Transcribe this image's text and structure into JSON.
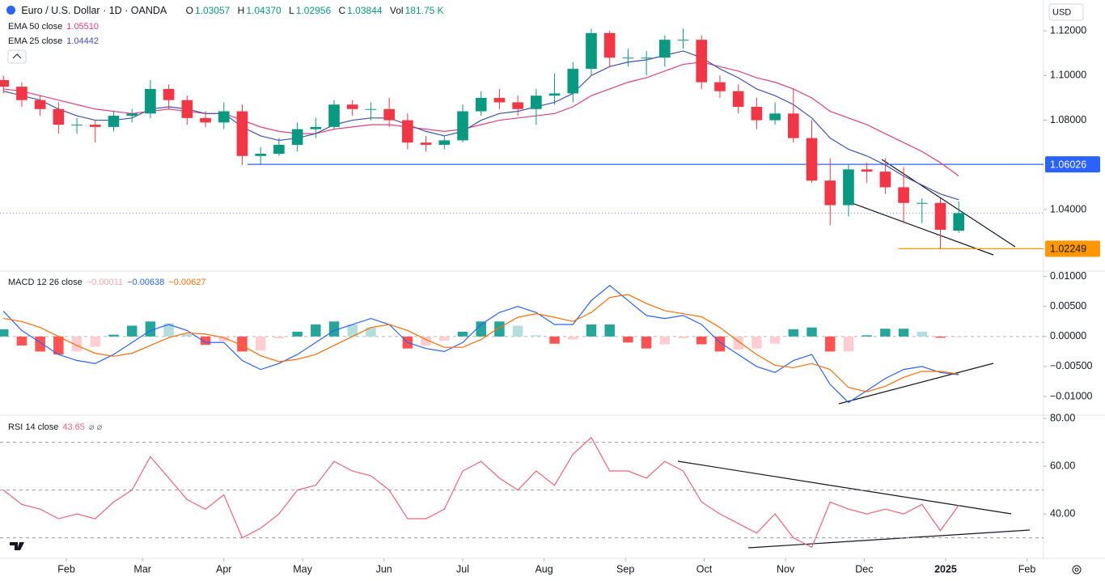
{
  "header": {
    "symbol": "Euro / U.S. Dollar · 1D · OANDA",
    "ohlc": [
      {
        "label": "O",
        "value": "1.03057"
      },
      {
        "label": "H",
        "value": "1.04370"
      },
      {
        "label": "L",
        "value": "1.02956"
      },
      {
        "label": "C",
        "value": "1.03844"
      },
      {
        "label": "Vol",
        "value": "181.75 K"
      }
    ],
    "currency": "USD"
  },
  "chart_data": [
    {
      "type": "candlestick",
      "x": [
        -24,
        -17,
        -10,
        -3,
        4,
        11,
        18,
        25,
        32,
        39,
        46,
        53,
        60,
        67,
        74,
        81,
        88,
        95,
        102,
        109,
        116,
        123,
        130,
        137,
        144,
        151,
        158,
        165,
        172,
        179,
        186,
        193,
        200,
        207,
        214,
        221,
        228,
        235,
        242,
        249,
        256,
        263,
        270,
        277,
        284,
        291,
        298,
        305,
        312,
        319,
        326,
        333,
        340
      ],
      "open": [
        1.098,
        1.095,
        1.089,
        1.085,
        1.078,
        1.078,
        1.077,
        1.082,
        1.083,
        1.094,
        1.089,
        1.081,
        1.079,
        1.084,
        1.064,
        1.065,
        1.069,
        1.076,
        1.077,
        1.087,
        1.085,
        1.085,
        1.08,
        1.07,
        1.069,
        1.071,
        1.084,
        1.09,
        1.088,
        1.085,
        1.091,
        1.092,
        1.103,
        1.119,
        1.108,
        1.108,
        1.108,
        1.116,
        1.116,
        1.097,
        1.093,
        1.086,
        1.08,
        1.083,
        1.072,
        1.053,
        1.042,
        1.058,
        1.057,
        1.05,
        1.043,
        1.043,
        1.03057
      ],
      "high": [
        1.1,
        1.097,
        1.091,
        1.088,
        1.081,
        1.08,
        1.084,
        1.085,
        1.098,
        1.096,
        1.091,
        1.084,
        1.088,
        1.087,
        1.068,
        1.072,
        1.079,
        1.081,
        1.089,
        1.089,
        1.088,
        1.09,
        1.083,
        1.073,
        1.073,
        1.087,
        1.093,
        1.094,
        1.091,
        1.094,
        1.101,
        1.106,
        1.121,
        1.12,
        1.112,
        1.111,
        1.118,
        1.121,
        1.118,
        1.1,
        1.096,
        1.09,
        1.088,
        1.094,
        1.08,
        1.063,
        1.06,
        1.061,
        1.063,
        1.059,
        1.045,
        1.045,
        1.0437
      ],
      "low": [
        1.092,
        1.086,
        1.082,
        1.074,
        1.074,
        1.07,
        1.075,
        1.079,
        1.081,
        1.085,
        1.078,
        1.077,
        1.076,
        1.06,
        1.06,
        1.064,
        1.066,
        1.072,
        1.076,
        1.082,
        1.08,
        1.077,
        1.067,
        1.066,
        1.067,
        1.07,
        1.082,
        1.085,
        1.082,
        1.078,
        1.087,
        1.088,
        1.1,
        1.104,
        1.104,
        1.1,
        1.104,
        1.112,
        1.094,
        1.09,
        1.083,
        1.076,
        1.078,
        1.07,
        1.052,
        1.033,
        1.037,
        1.052,
        1.047,
        1.034,
        1.034,
        1.02249,
        1.02956
      ],
      "close": [
        1.095,
        1.089,
        1.085,
        1.078,
        1.078,
        1.077,
        1.082,
        1.083,
        1.094,
        1.089,
        1.081,
        1.079,
        1.084,
        1.064,
        1.065,
        1.069,
        1.076,
        1.077,
        1.087,
        1.085,
        1.085,
        1.08,
        1.07,
        1.069,
        1.071,
        1.084,
        1.09,
        1.088,
        1.085,
        1.091,
        1.092,
        1.103,
        1.119,
        1.108,
        1.108,
        1.108,
        1.116,
        1.116,
        1.097,
        1.093,
        1.086,
        1.08,
        1.083,
        1.072,
        1.053,
        1.042,
        1.058,
        1.057,
        1.05,
        1.043,
        1.043,
        1.031,
        1.03844
      ],
      "up_color": "#089981",
      "down_color": "#f23645",
      "xlim": [
        -25.3,
        372.3
      ],
      "ylim": [
        1.0125,
        1.1338
      ],
      "yticks": [
        {
          "value": 1.12,
          "label": "1.12000"
        },
        {
          "value": 1.1,
          "label": "1.10000"
        },
        {
          "value": 1.08,
          "label": "1.08000"
        },
        {
          "value": 1.04,
          "label": "1.04000"
        }
      ],
      "series": [
        {
          "name": "EMA 50 close",
          "last_label": "1.05510",
          "color": "#e0407a",
          "values": [
            1.094,
            1.093,
            1.091,
            1.089,
            1.087,
            1.085,
            1.084,
            1.083,
            1.084,
            1.085,
            1.084,
            1.083,
            1.083,
            1.08,
            1.077,
            1.075,
            1.074,
            1.074,
            1.076,
            1.077,
            1.078,
            1.078,
            1.077,
            1.076,
            1.075,
            1.076,
            1.078,
            1.08,
            1.081,
            1.082,
            1.083,
            1.086,
            1.091,
            1.094,
            1.097,
            1.099,
            1.102,
            1.105,
            1.106,
            1.104,
            1.102,
            1.099,
            1.097,
            1.094,
            1.09,
            1.084,
            1.081,
            1.078,
            1.074,
            1.07,
            1.066,
            1.061,
            1.0551
          ]
        },
        {
          "name": "EMA 25 close",
          "last_label": "1.04442",
          "color": "#3f51b5",
          "values": [
            1.093,
            1.091,
            1.089,
            1.085,
            1.082,
            1.08,
            1.08,
            1.081,
            1.085,
            1.086,
            1.085,
            1.083,
            1.083,
            1.077,
            1.073,
            1.071,
            1.072,
            1.074,
            1.078,
            1.08,
            1.081,
            1.081,
            1.078,
            1.075,
            1.073,
            1.075,
            1.08,
            1.083,
            1.084,
            1.086,
            1.088,
            1.092,
            1.1,
            1.104,
            1.106,
            1.107,
            1.109,
            1.111,
            1.108,
            1.103,
            1.099,
            1.094,
            1.091,
            1.087,
            1.081,
            1.072,
            1.067,
            1.064,
            1.06,
            1.055,
            1.051,
            1.047,
            1.04442
          ]
        }
      ],
      "levels": [
        {
          "value": 1.06026,
          "label": "1.06026",
          "color": "#2962ff",
          "from": 69
        },
        {
          "value": 1.02249,
          "label": "1.02249",
          "color": "#ff9800",
          "from": 317
        }
      ]
    },
    {
      "type": "macd",
      "name": "MACD 12 26 close",
      "ylim": [
        -0.0131,
        0.0109
      ],
      "yticks": [
        {
          "value": 0.01,
          "label": "0.01000"
        },
        {
          "value": 0.005,
          "label": "0.00500"
        },
        {
          "value": 0,
          "label": "0.00000"
        },
        {
          "value": -0.005,
          "label": "−0.00500"
        },
        {
          "value": -0.01,
          "label": "−0.01000"
        }
      ],
      "histogram": {
        "last_label": "−0.00011",
        "colors": [
          "#26a69a",
          "#b2dfdb",
          "#ff5252",
          "#ffcdd2"
        ],
        "values": [
          0.0012,
          -0.0015,
          -0.0025,
          -0.003,
          -0.0025,
          -0.0017,
          0.0003,
          0.0018,
          0.0025,
          0.0022,
          0.0004,
          -0.0014,
          -0.0008,
          -0.0025,
          -0.0023,
          -0.0003,
          0.0008,
          0.002,
          0.0025,
          0.002,
          0.0015,
          0.0,
          -0.002,
          -0.0015,
          -0.0007,
          0.0008,
          0.0025,
          0.0025,
          0.0018,
          0.0002,
          -0.0012,
          -0.0005,
          0.002,
          0.002,
          -0.001,
          -0.002,
          -0.0013,
          -0.0003,
          -0.0013,
          -0.0025,
          -0.0022,
          -0.002,
          -0.0012,
          0.0012,
          0.0015,
          -0.0025,
          -0.0025,
          0.0002,
          0.0013,
          0.0013,
          0.0008,
          -0.0002,
          -0.00011
        ]
      },
      "series": [
        {
          "last_label": "−0.00638",
          "color": "#2962ff",
          "values": [
            0.0042,
            0.001,
            -0.001,
            -0.003,
            -0.004,
            -0.0045,
            -0.003,
            -0.001,
            0.001,
            0.002,
            0.001,
            -0.001,
            -0.001,
            -0.004,
            -0.0055,
            -0.0045,
            -0.003,
            -0.001,
            0.001,
            0.002,
            0.003,
            0.002,
            -0.001,
            -0.002,
            -0.0025,
            -0.001,
            0.002,
            0.004,
            0.005,
            0.004,
            0.002,
            0.002,
            0.006,
            0.0085,
            0.006,
            0.0035,
            0.003,
            0.0035,
            0.002,
            -0.001,
            -0.003,
            -0.005,
            -0.006,
            -0.004,
            -0.003,
            -0.008,
            -0.011,
            -0.009,
            -0.007,
            -0.0055,
            -0.005,
            -0.006,
            -0.00638
          ]
        },
        {
          "last_label": "−0.00627",
          "color": "#ff6d00",
          "values": [
            0.003,
            0.0025,
            0.0015,
            0.0,
            -0.0015,
            -0.0028,
            -0.0033,
            -0.0028,
            -0.0015,
            -0.0002,
            0.0006,
            0.0004,
            -0.0002,
            -0.0015,
            -0.0032,
            -0.0042,
            -0.0038,
            -0.003,
            -0.0015,
            0.0,
            0.0015,
            0.002,
            0.001,
            -0.0005,
            -0.0018,
            -0.0018,
            -0.0005,
            0.0015,
            0.0032,
            0.0038,
            0.0032,
            0.0025,
            0.004,
            0.0065,
            0.007,
            0.0055,
            0.0043,
            0.0038,
            0.0033,
            0.0015,
            -0.0008,
            -0.003,
            -0.0048,
            -0.0052,
            -0.0045,
            -0.0055,
            -0.0085,
            -0.0092,
            -0.0083,
            -0.0068,
            -0.0058,
            -0.0058,
            -0.00627
          ]
        }
      ]
    },
    {
      "type": "rsi",
      "name": "RSI 14 close",
      "ylim": [
        21.4,
        81.4
      ],
      "yticks": [
        {
          "value": 80,
          "label": "80.00"
        },
        {
          "value": 60,
          "label": "60.00"
        },
        {
          "value": 40,
          "label": "40.00"
        }
      ],
      "bands": [
        70,
        50,
        30
      ],
      "xticks": [
        {
          "value": 0,
          "label": "Feb"
        },
        {
          "value": 29,
          "label": "Mar"
        },
        {
          "value": 60,
          "label": "Apr"
        },
        {
          "value": 90,
          "label": "May"
        },
        {
          "value": 121,
          "label": "Jun"
        },
        {
          "value": 151,
          "label": "Jul"
        },
        {
          "value": 182,
          "label": "Aug"
        },
        {
          "value": 213,
          "label": "Sep"
        },
        {
          "value": 243,
          "label": "Oct"
        },
        {
          "value": 274,
          "label": "Nov"
        },
        {
          "value": 304,
          "label": "Dec"
        },
        {
          "value": 335,
          "label": "2025"
        },
        {
          "value": 366,
          "label": "Feb"
        }
      ],
      "series": [
        {
          "last_label": "43.65",
          "color": "#f0627a",
          "values": [
            50,
            44,
            42,
            38,
            40,
            38,
            45,
            50,
            64,
            55,
            46,
            42,
            48,
            30,
            34,
            40,
            50,
            52,
            62,
            58,
            56,
            50,
            38,
            38,
            42,
            58,
            62,
            55,
            50,
            58,
            52,
            65,
            72,
            58,
            58,
            55,
            62,
            58,
            45,
            40,
            36,
            32,
            40,
            30,
            26,
            45,
            42,
            40,
            42,
            40,
            44,
            33,
            43.65
          ]
        }
      ]
    }
  ]
}
